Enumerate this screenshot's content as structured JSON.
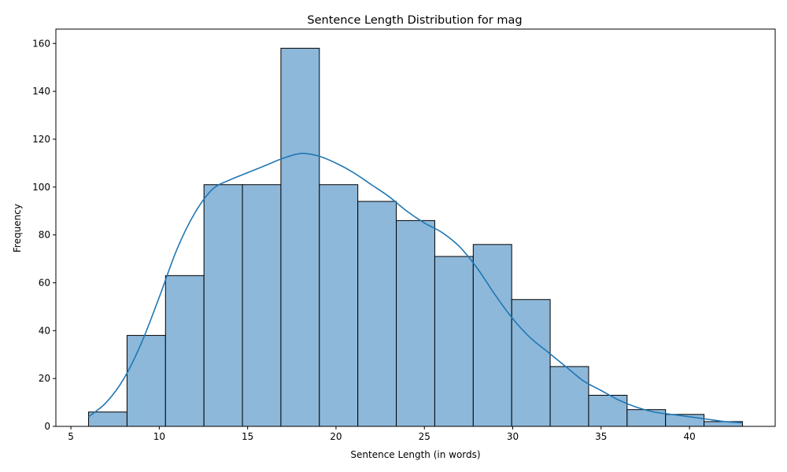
{
  "chart_data": {
    "type": "bar",
    "subtype": "histogram-with-kde",
    "title": "Sentence Length Distribution for mag",
    "xlabel": "Sentence Length (in words)",
    "ylabel": "Frequency",
    "xlim": [
      4.15,
      44.85
    ],
    "ylim": [
      0,
      166
    ],
    "xticks": [
      5,
      10,
      15,
      20,
      25,
      30,
      35,
      40
    ],
    "yticks": [
      0,
      20,
      40,
      60,
      80,
      100,
      120,
      140,
      160
    ],
    "grid": false,
    "bin_edges": [
      6.0,
      8.176,
      10.353,
      12.529,
      14.706,
      16.882,
      19.059,
      21.235,
      23.412,
      25.588,
      27.765,
      29.941,
      32.118,
      34.294,
      36.471,
      38.647,
      40.824,
      43.0
    ],
    "values": [
      6,
      38,
      63,
      101,
      101,
      158,
      101,
      94,
      86,
      71,
      76,
      53,
      25,
      13,
      7,
      5,
      2
    ],
    "kde": {
      "x": [
        6,
        7,
        8,
        9,
        10,
        11,
        12,
        13,
        14,
        15,
        16,
        17,
        18,
        19,
        20,
        21,
        22,
        23,
        24,
        25,
        26,
        27,
        28,
        29,
        30,
        31,
        32,
        33,
        34,
        35,
        36,
        37,
        38,
        39,
        40,
        41,
        42,
        43
      ],
      "y": [
        4,
        10,
        20,
        35,
        54,
        74,
        89,
        99,
        103,
        106,
        109,
        112,
        114,
        113,
        110,
        106,
        101,
        96,
        90,
        85,
        81,
        75,
        66,
        55,
        45,
        37,
        31,
        25,
        19,
        15,
        11,
        8,
        6,
        5,
        4,
        3,
        2,
        1.5
      ]
    },
    "colors": {
      "bar_fill": "#8db8da",
      "bar_edge": "#000000",
      "kde_line": "#1f77b4"
    }
  }
}
